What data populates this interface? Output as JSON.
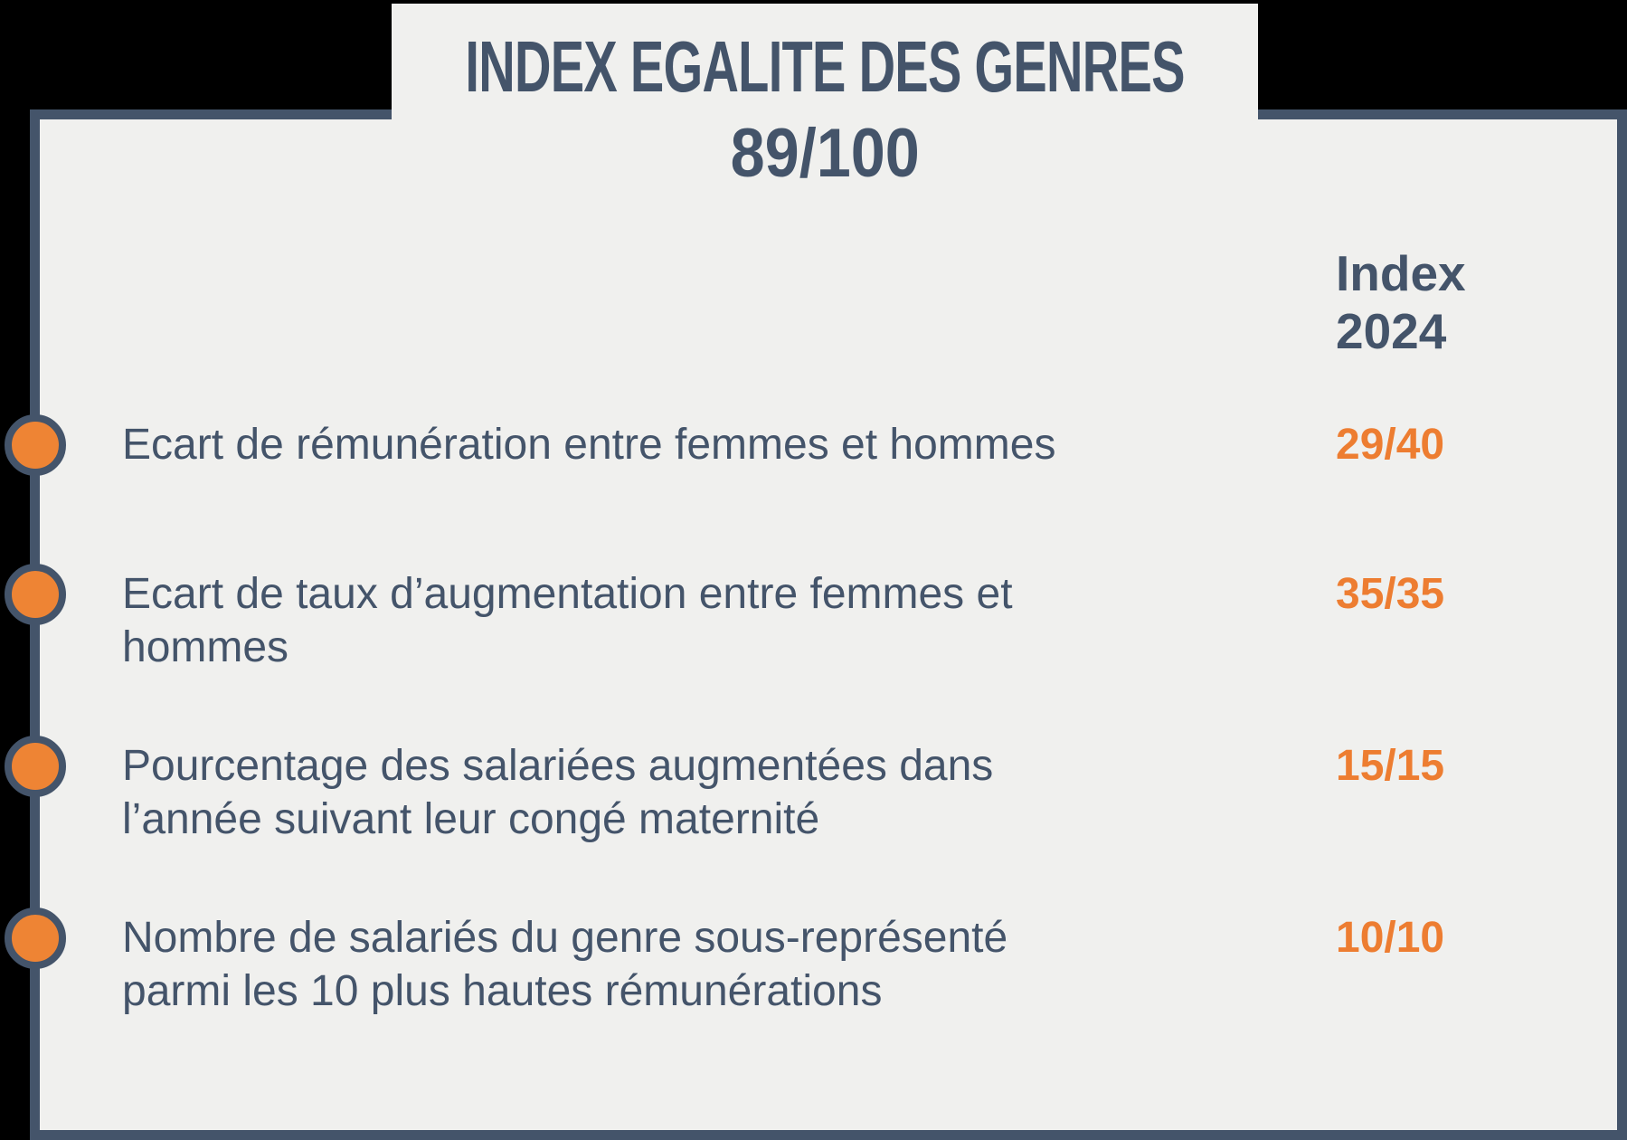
{
  "title": {
    "line1": "INDEX EGALITE DES GENRES",
    "line2": "89/100"
  },
  "column_header": {
    "line1": "Index",
    "line2": "2024"
  },
  "rows": [
    {
      "label": "Ecart de rémunération entre femmes et hommes",
      "score": "29/40"
    },
    {
      "label": "Ecart de taux d’augmentation entre femmes et hommes",
      "score": "35/35"
    },
    {
      "label": "Pourcentage des salariées augmentées dans l’année suivant leur congé maternité",
      "score": "15/15"
    },
    {
      "label": "Nombre de salariés du genre sous-représenté parmi les 10 plus hautes rémunérations",
      "score": "10/10"
    }
  ],
  "icons": {
    "bullet": "circle-bullet"
  },
  "colors": {
    "accent_orange": "#ED7D31",
    "bullet_orange": "#EE8434",
    "slate": "#44546A",
    "card_bg": "#F0F0EE",
    "page_bg": "#000000"
  }
}
